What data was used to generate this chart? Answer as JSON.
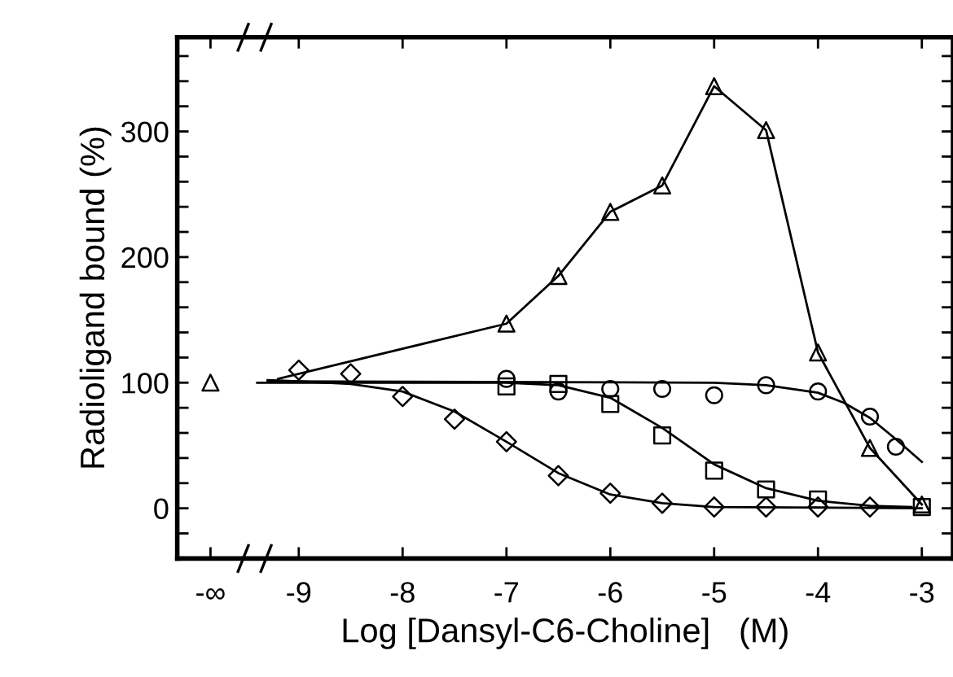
{
  "chart_data": {
    "type": "scatter",
    "xlabel": "Log [Dansyl-C6-Choline]   (M)",
    "ylabel": "Radioligand bound (%)",
    "xlim": [
      -10.17,
      -2.7
    ],
    "ylim": [
      -40,
      375
    ],
    "xticks": [
      {
        "value": -9.85,
        "label": "-∞"
      },
      -9,
      -8,
      -7,
      -6,
      -5,
      -4,
      -3
    ],
    "yticks": [
      {
        "value": -20,
        "label": null
      },
      0,
      {
        "value": 20,
        "label": null
      },
      {
        "value": 40,
        "label": null
      },
      {
        "value": 60,
        "label": null
      },
      {
        "value": 80,
        "label": null
      },
      100,
      {
        "value": 120,
        "label": null
      },
      {
        "value": 140,
        "label": null
      },
      {
        "value": 160,
        "label": null
      },
      {
        "value": 180,
        "label": null
      },
      200,
      {
        "value": 220,
        "label": null
      },
      {
        "value": 240,
        "label": null
      },
      {
        "value": 260,
        "label": null
      },
      {
        "value": 280,
        "label": null
      },
      300,
      {
        "value": 320,
        "label": null
      },
      {
        "value": 340,
        "label": null
      },
      {
        "value": 360,
        "label": null
      }
    ],
    "grid": false,
    "legend": false,
    "series": [
      {
        "type": "line",
        "marker": "none",
        "color": "#000000",
        "x": [
          -9.2,
          -7,
          -6.5,
          -6,
          -5.5,
          -5,
          -4.5,
          -4,
          -3.5,
          -3
        ],
        "values": [
          103,
          147,
          185,
          236,
          257,
          336,
          301,
          124,
          48,
          3
        ]
      },
      {
        "type": "line",
        "marker": "none",
        "color": "#000000",
        "x": [
          -9.3,
          -5,
          -4.5,
          -4,
          -3.75,
          -3.5,
          -3.25,
          -3
        ],
        "values": [
          101,
          100,
          98,
          92,
          84,
          72,
          55,
          37
        ]
      },
      {
        "type": "line",
        "marker": "none",
        "color": "#000000",
        "x": [
          -9.4,
          -7,
          -6.5,
          -6,
          -5.5,
          -5,
          -4.5,
          -4,
          -3.5,
          -3.1
        ],
        "values": [
          100,
          100,
          98,
          88,
          64,
          35,
          16,
          6,
          2,
          1
        ]
      },
      {
        "type": "line",
        "marker": "none",
        "color": "#000000",
        "x": [
          -9.3,
          -9,
          -8.5,
          -8,
          -7.5,
          -7,
          -6.5,
          -6,
          -5.5,
          -5,
          -3
        ],
        "values": [
          102,
          101,
          99,
          93,
          77,
          53,
          28,
          11,
          4,
          1,
          0
        ]
      },
      {
        "marker": "triangle",
        "color": "#000000",
        "x": [
          -9.85,
          -7,
          -6.5,
          -6,
          -5.5,
          -5,
          -4.5,
          -4,
          -3.5,
          -3
        ],
        "values": [
          100,
          147,
          185,
          236,
          257,
          336,
          301,
          124,
          48,
          3
        ]
      },
      {
        "marker": "circle",
        "color": "#000000",
        "x": [
          -7,
          -6.5,
          -6,
          -5.5,
          -5,
          -4.5,
          -4,
          -3.5,
          -3.25
        ],
        "values": [
          103,
          93,
          95,
          95,
          90,
          98,
          93,
          73,
          49
        ]
      },
      {
        "marker": "square",
        "color": "#000000",
        "x": [
          -7,
          -6.5,
          -6,
          -5.5,
          -5,
          -4.5,
          -4,
          -3
        ],
        "values": [
          97,
          99,
          83,
          58,
          30,
          15,
          7,
          1
        ]
      },
      {
        "marker": "diamond",
        "color": "#000000",
        "x": [
          -9,
          -8.5,
          -8,
          -7.5,
          -7,
          -6.5,
          -6,
          -5.5,
          -5,
          -4.5,
          -4,
          -3.5
        ],
        "values": [
          110,
          107,
          89,
          71,
          53,
          26,
          12,
          4,
          1,
          1,
          1,
          1
        ]
      }
    ]
  }
}
